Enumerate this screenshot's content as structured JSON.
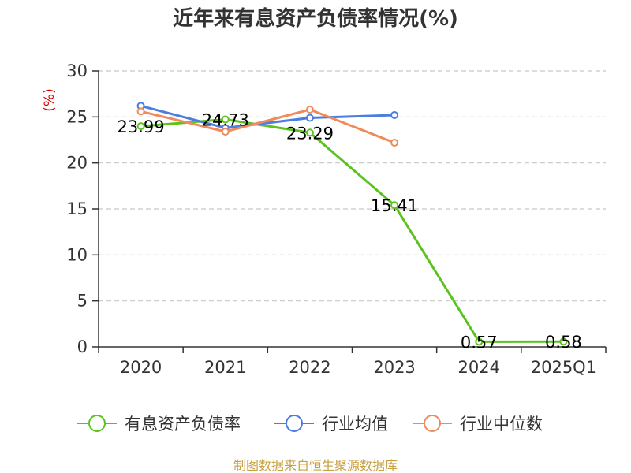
{
  "chart_data": {
    "type": "line",
    "title": "近年来有息资产负债率情况(%)",
    "ylabel": "(%)",
    "ylim": [
      0,
      30
    ],
    "yticks": [
      0,
      5,
      10,
      15,
      20,
      25,
      30
    ],
    "categories": [
      "2020",
      "2021",
      "2022",
      "2023",
      "2024",
      "2025Q1"
    ],
    "grid": true,
    "legend_position": "bottom",
    "series": [
      {
        "name": "有息资产负债率",
        "color": "#5ac31e",
        "values": [
          23.99,
          24.73,
          23.29,
          15.41,
          0.57,
          0.58
        ],
        "show_labels": true
      },
      {
        "name": "行业均值",
        "color": "#4a7ee0",
        "values": [
          26.2,
          23.8,
          24.9,
          25.2,
          null,
          null
        ],
        "show_labels": false
      },
      {
        "name": "行业中位数",
        "color": "#f08a5a",
        "values": [
          25.6,
          23.4,
          25.8,
          22.2,
          null,
          null
        ],
        "show_labels": false
      }
    ],
    "data_labels": [
      "23.99",
      "24.73",
      "23.29",
      "15.41",
      "0.57",
      "0.58"
    ]
  },
  "source": "制图数据来自恒生聚源数据库"
}
